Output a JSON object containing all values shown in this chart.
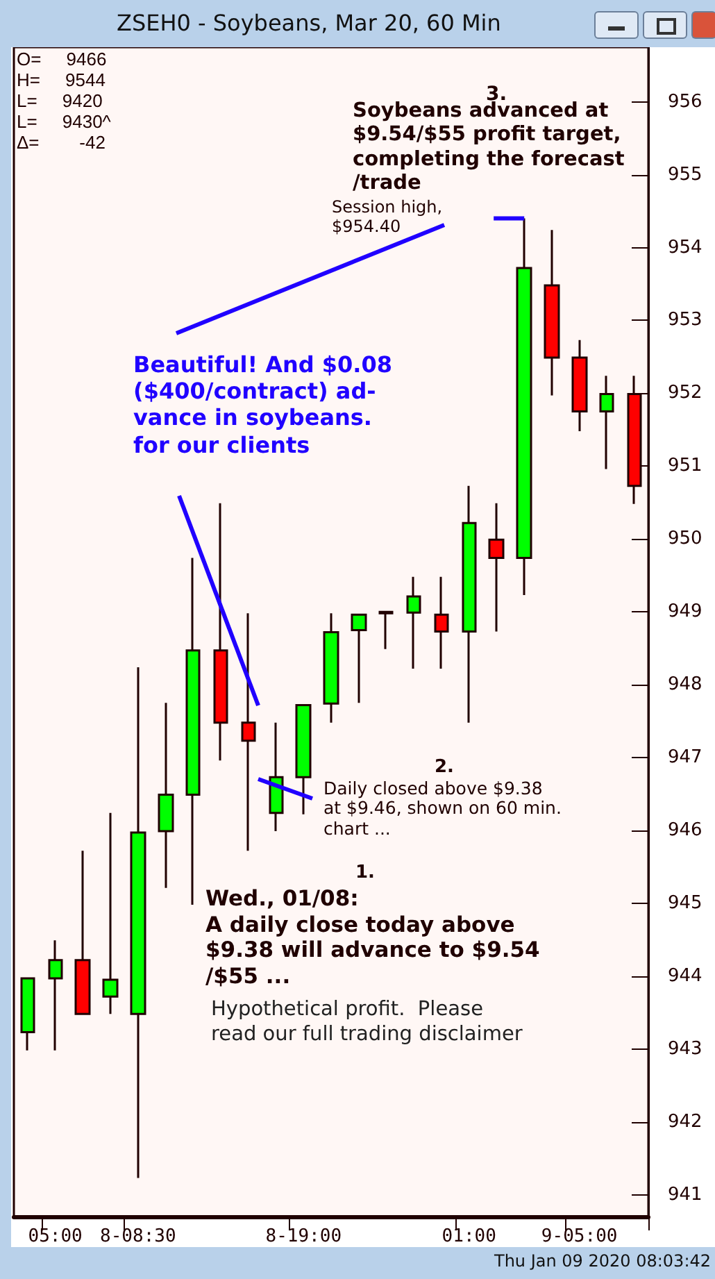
{
  "chart_data": {
    "type": "candlestick",
    "title": "ZSEH0 - Soybeans, Mar 20, 60 Min",
    "categories": [
      null,
      "05:00",
      null,
      null,
      "8-08:30",
      null,
      null,
      null,
      null,
      null,
      "8-19:00",
      null,
      null,
      null,
      null,
      null,
      "01:00",
      null,
      null,
      null,
      "9-05:00",
      null,
      null
    ],
    "ohlc": [
      [
        943.23,
        943.97,
        942.98,
        943.97
      ],
      [
        943.97,
        944.49,
        942.98,
        944.22
      ],
      [
        944.22,
        945.72,
        943.48,
        943.48
      ],
      [
        943.72,
        946.24,
        943.48,
        943.95
      ],
      [
        943.48,
        948.24,
        941.23,
        945.97
      ],
      [
        945.99,
        947.75,
        945.21,
        946.49
      ],
      [
        946.49,
        949.74,
        944.98,
        948.47
      ],
      [
        948.47,
        950.49,
        946.96,
        947.48
      ],
      [
        947.48,
        948.98,
        945.72,
        947.23
      ],
      [
        946.24,
        947.48,
        945.99,
        946.73
      ],
      [
        946.73,
        947.72,
        946.22,
        947.72
      ],
      [
        947.74,
        948.98,
        947.48,
        948.72
      ],
      [
        948.75,
        948.96,
        947.75,
        948.96
      ],
      [
        948.98,
        949.0,
        948.49,
        949.0
      ],
      [
        948.99,
        949.48,
        948.22,
        949.21
      ],
      [
        948.96,
        949.48,
        948.22,
        948.73
      ],
      [
        948.73,
        950.73,
        947.48,
        950.22
      ],
      [
        949.99,
        950.49,
        948.73,
        949.74
      ],
      [
        949.74,
        954.4,
        949.23,
        953.72
      ],
      [
        953.48,
        954.24,
        951.97,
        952.49
      ],
      [
        952.49,
        952.73,
        951.48,
        951.75
      ],
      [
        951.75,
        952.24,
        950.96,
        951.99
      ],
      [
        951.99,
        952.24,
        950.48,
        950.73
      ]
    ],
    "colors": [
      "#00ff00",
      "#00ff00",
      "#ff0000",
      "#00ff00",
      "#00ff00",
      "#00ff00",
      "#00ff00",
      "#ff0000",
      "#ff0000",
      "#00ff00",
      "#00ff00",
      "#00ff00",
      "#00ff00",
      "#00ff00",
      "#00ff00",
      "#ff0000",
      "#00ff00",
      "#ff0000",
      "#00ff00",
      "#ff0000",
      "#ff0000",
      "#00ff00",
      "#ff0000"
    ],
    "ylim": [
      940.7,
      956.75
    ],
    "yticks": [
      941,
      942,
      943,
      944,
      945,
      946,
      947,
      948,
      949,
      950,
      951,
      952,
      953,
      954,
      955,
      956
    ],
    "annotations": [
      "O=     9466\nH=     9544\nL=     9420\nL=     9430^\nΔ=        -42",
      "3.",
      "Soybeans advanced at\n$9.54/$55 profit target,\ncompleting the forecast\n/trade",
      "Session high,\n$954.40",
      "Beautiful! And $0.08\n($400/contract) ad-\nvance in soybeans.\nfor our clients",
      "2.",
      "Daily closed above $9.38\nat $9.46, shown on 60 min.\nchart ...",
      "1.",
      "Wed., 01/08:\nA daily close today above\n$9.38 will advance to $9.54\n/$55 ...",
      "Hypothetical profit.  Please\nread our full trading disclaimer",
      "Thu Jan 09 2020 08:03:42"
    ]
  }
}
